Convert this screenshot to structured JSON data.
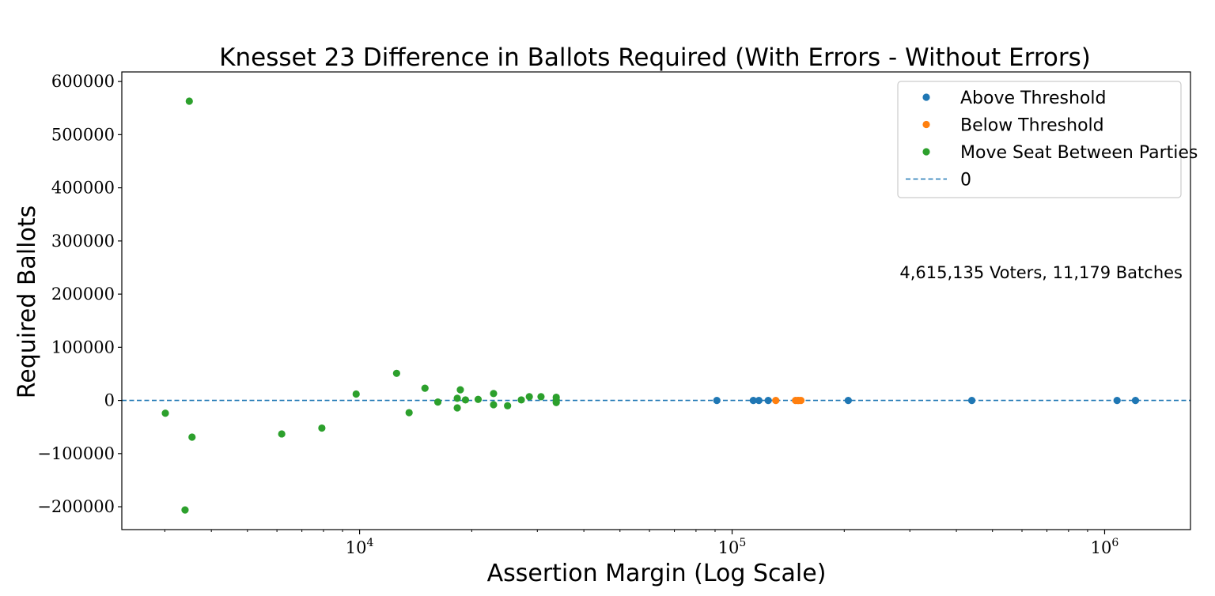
{
  "chart_data": {
    "type": "scatter",
    "title": "Knesset 23 Difference in Ballots Required (With Errors - Without Errors)",
    "xlabel": "Assertion Margin (Log Scale)",
    "ylabel": "Required Ballots",
    "annotation": "4,615,135 Voters, 11,179 Batches",
    "x_scale": "log",
    "xlim": [
      2300,
      1700000
    ],
    "ylim": [
      -243000,
      618000
    ],
    "x_ticks": [
      {
        "value": 10000,
        "base": "10",
        "exp": "4"
      },
      {
        "value": 100000,
        "base": "10",
        "exp": "5"
      },
      {
        "value": 1000000,
        "base": "10",
        "exp": "6"
      }
    ],
    "y_ticks": [
      {
        "value": 600000,
        "label": "600000"
      },
      {
        "value": 500000,
        "label": "500000"
      },
      {
        "value": 400000,
        "label": "400000"
      },
      {
        "value": 300000,
        "label": "300000"
      },
      {
        "value": 200000,
        "label": "200000"
      },
      {
        "value": 100000,
        "label": "100000"
      },
      {
        "value": 0,
        "label": "0"
      },
      {
        "value": -100000,
        "label": "−100000"
      },
      {
        "value": -200000,
        "label": "−200000"
      }
    ],
    "grid": false,
    "legend_position": "top-right",
    "reference_line": {
      "name": "0",
      "y": 0,
      "color": "#1f77b4",
      "style": "dashed"
    },
    "series": [
      {
        "name": "Above Threshold",
        "color": "#1f77b4",
        "points": [
          {
            "x": 91000,
            "y": 0
          },
          {
            "x": 114000,
            "y": 0
          },
          {
            "x": 118000,
            "y": 0
          },
          {
            "x": 125000,
            "y": 0
          },
          {
            "x": 205000,
            "y": 0
          },
          {
            "x": 440000,
            "y": 0
          },
          {
            "x": 1080000,
            "y": 0
          },
          {
            "x": 1210000,
            "y": 0
          }
        ]
      },
      {
        "name": "Below Threshold",
        "color": "#ff7f0e",
        "points": [
          {
            "x": 131000,
            "y": 0
          },
          {
            "x": 148000,
            "y": 0
          },
          {
            "x": 150000,
            "y": 0
          },
          {
            "x": 151000,
            "y": 0
          },
          {
            "x": 153000,
            "y": 0
          }
        ]
      },
      {
        "name": "Move Seat Between Parties",
        "color": "#2ca02c",
        "points": [
          {
            "x": 3490,
            "y": 563000
          },
          {
            "x": 3010,
            "y": -24000
          },
          {
            "x": 3550,
            "y": -69000
          },
          {
            "x": 3400,
            "y": -206000
          },
          {
            "x": 6180,
            "y": -63000
          },
          {
            "x": 7920,
            "y": -52000
          },
          {
            "x": 9790,
            "y": 12000
          },
          {
            "x": 12570,
            "y": 51000
          },
          {
            "x": 13580,
            "y": -23000
          },
          {
            "x": 14980,
            "y": 23000
          },
          {
            "x": 16220,
            "y": -3000
          },
          {
            "x": 18290,
            "y": 4000
          },
          {
            "x": 18290,
            "y": -14000
          },
          {
            "x": 18640,
            "y": 20000
          },
          {
            "x": 19240,
            "y": 1000
          },
          {
            "x": 20810,
            "y": 2000
          },
          {
            "x": 22890,
            "y": 13000
          },
          {
            "x": 22890,
            "y": -8000
          },
          {
            "x": 24960,
            "y": -10000
          },
          {
            "x": 27170,
            "y": 1000
          },
          {
            "x": 28550,
            "y": 7000
          },
          {
            "x": 30690,
            "y": 7000
          },
          {
            "x": 33720,
            "y": 6000
          },
          {
            "x": 33720,
            "y": 1000
          },
          {
            "x": 33720,
            "y": -4000
          }
        ]
      }
    ]
  }
}
